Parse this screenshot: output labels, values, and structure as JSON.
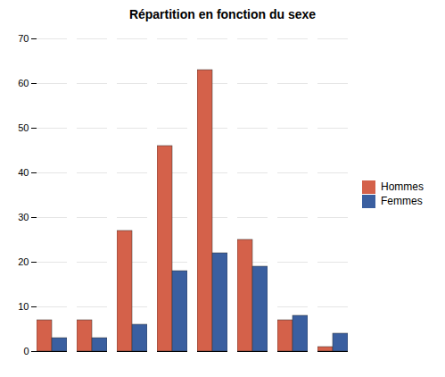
{
  "chart_data": {
    "type": "bar",
    "title": "Répartition en fonction du sexe",
    "categories": [
      null,
      null,
      null,
      null,
      null,
      null,
      null,
      null
    ],
    "series": [
      {
        "name": "Hommes",
        "color": "#D4614A",
        "values": [
          7,
          7,
          27,
          46,
          63,
          25,
          7,
          1
        ]
      },
      {
        "name": "Femmes",
        "color": "#3A5FA0",
        "values": [
          3,
          3,
          6,
          18,
          22,
          19,
          8,
          4
        ]
      }
    ],
    "ylim": [
      0,
      70
    ],
    "yticks": [
      0,
      10,
      20,
      30,
      40,
      50,
      60,
      70
    ],
    "grid": true,
    "legend": "right",
    "tick_labels": "y"
  }
}
